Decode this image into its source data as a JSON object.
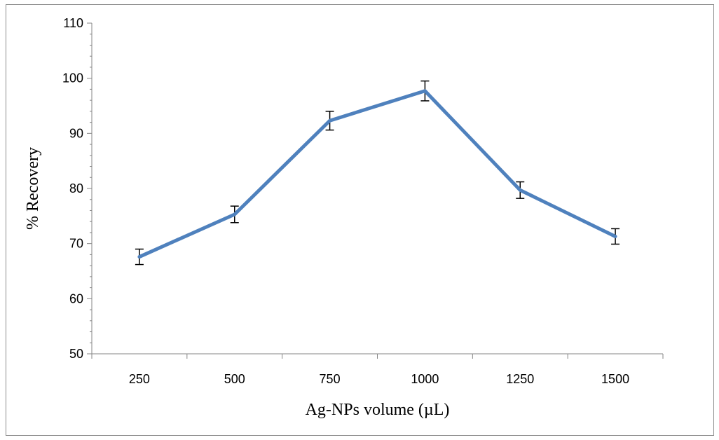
{
  "chart_data": {
    "type": "line",
    "categories": [
      "250",
      "500",
      "750",
      "1000",
      "1250",
      "1500"
    ],
    "series": [
      {
        "values": [
          67.6,
          75.3,
          92.3,
          97.7,
          79.7,
          71.3
        ],
        "error": [
          1.4,
          1.5,
          1.7,
          1.8,
          1.5,
          1.4
        ]
      }
    ],
    "xlabel": "Ag-NPs volume (µL)",
    "ylabel": "% Recovery",
    "ylim": [
      50,
      110
    ],
    "yticks": [
      50,
      60,
      70,
      80,
      90,
      100,
      110
    ],
    "grid": false,
    "line_color": "#4f81bd",
    "error_bar_color": "#000000"
  }
}
